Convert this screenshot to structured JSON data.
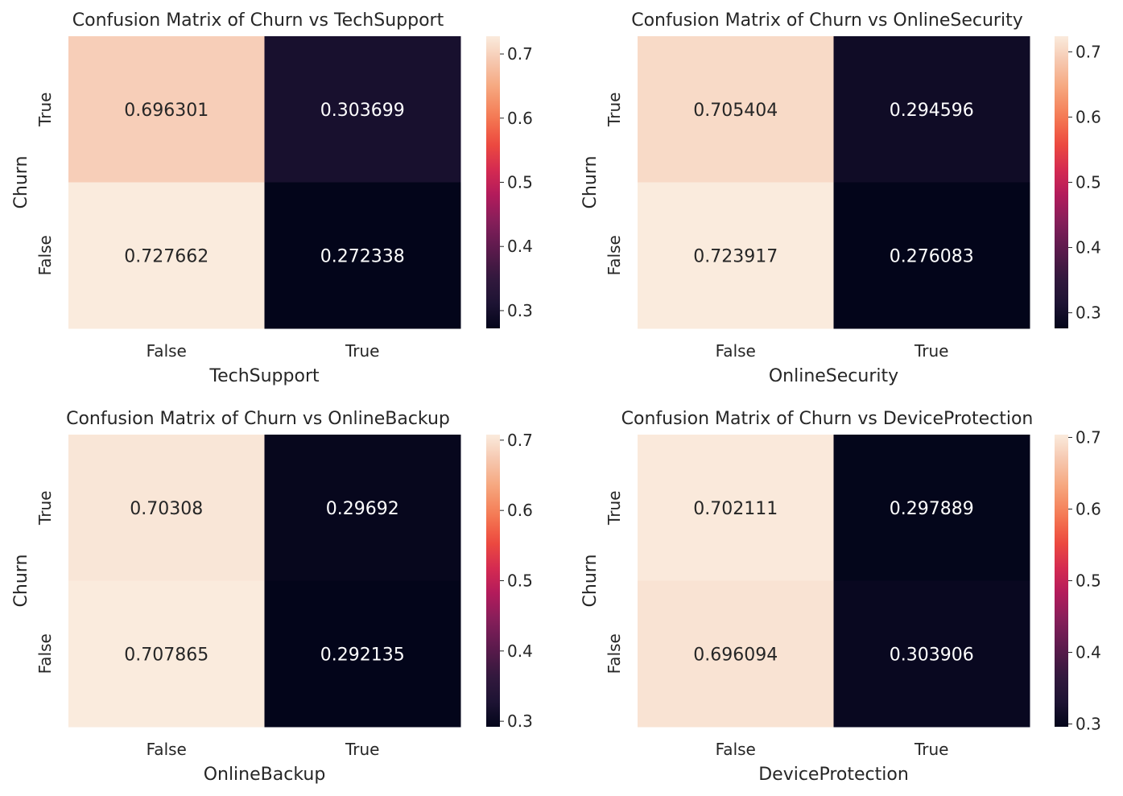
{
  "chart_data": [
    {
      "type": "heatmap",
      "title": "Confusion Matrix of Churn vs TechSupport",
      "xlabel": "TechSupport",
      "ylabel": "Churn",
      "x_categories": [
        "False",
        "True"
      ],
      "y_categories": [
        "True",
        "False"
      ],
      "values": [
        [
          "0.696301",
          "0.303699"
        ],
        [
          "0.727662",
          "0.272338"
        ]
      ],
      "colorbar": {
        "vmin": 0.272338,
        "vmax": 0.727662,
        "ticks": [
          "0.3",
          "0.4",
          "0.5",
          "0.6",
          "0.7"
        ]
      }
    },
    {
      "type": "heatmap",
      "title": "Confusion Matrix of Churn vs OnlineSecurity",
      "xlabel": "OnlineSecurity",
      "ylabel": "Churn",
      "x_categories": [
        "False",
        "True"
      ],
      "y_categories": [
        "True",
        "False"
      ],
      "values": [
        [
          "0.705404",
          "0.294596"
        ],
        [
          "0.723917",
          "0.276083"
        ]
      ],
      "colorbar": {
        "vmin": 0.276083,
        "vmax": 0.723917,
        "ticks": [
          "0.3",
          "0.4",
          "0.5",
          "0.6",
          "0.7"
        ]
      }
    },
    {
      "type": "heatmap",
      "title": "Confusion Matrix of Churn vs OnlineBackup",
      "xlabel": "OnlineBackup",
      "ylabel": "Churn",
      "x_categories": [
        "False",
        "True"
      ],
      "y_categories": [
        "True",
        "False"
      ],
      "values": [
        [
          "0.70308",
          "0.29692"
        ],
        [
          "0.707865",
          "0.292135"
        ]
      ],
      "colorbar": {
        "vmin": 0.292135,
        "vmax": 0.707865,
        "ticks": [
          "0.3",
          "0.4",
          "0.5",
          "0.6",
          "0.7"
        ]
      }
    },
    {
      "type": "heatmap",
      "title": "Confusion Matrix of Churn vs DeviceProtection",
      "xlabel": "DeviceProtection",
      "ylabel": "Churn",
      "x_categories": [
        "False",
        "True"
      ],
      "y_categories": [
        "True",
        "False"
      ],
      "values": [
        [
          "0.702111",
          "0.297889"
        ],
        [
          "0.696094",
          "0.303906"
        ]
      ],
      "colorbar": {
        "vmin": 0.296094,
        "vmax": 0.703906,
        "ticks": [
          "0.3",
          "0.4",
          "0.5",
          "0.6",
          "0.7"
        ]
      }
    }
  ],
  "colormap": [
    "#03051a",
    "#1f1435",
    "#35193e",
    "#5d1a4d",
    "#841e5a",
    "#b21a5b",
    "#d52b51",
    "#ee4c3e",
    "#f47c55",
    "#f6a47b",
    "#f6c5ac",
    "#faebdd"
  ]
}
